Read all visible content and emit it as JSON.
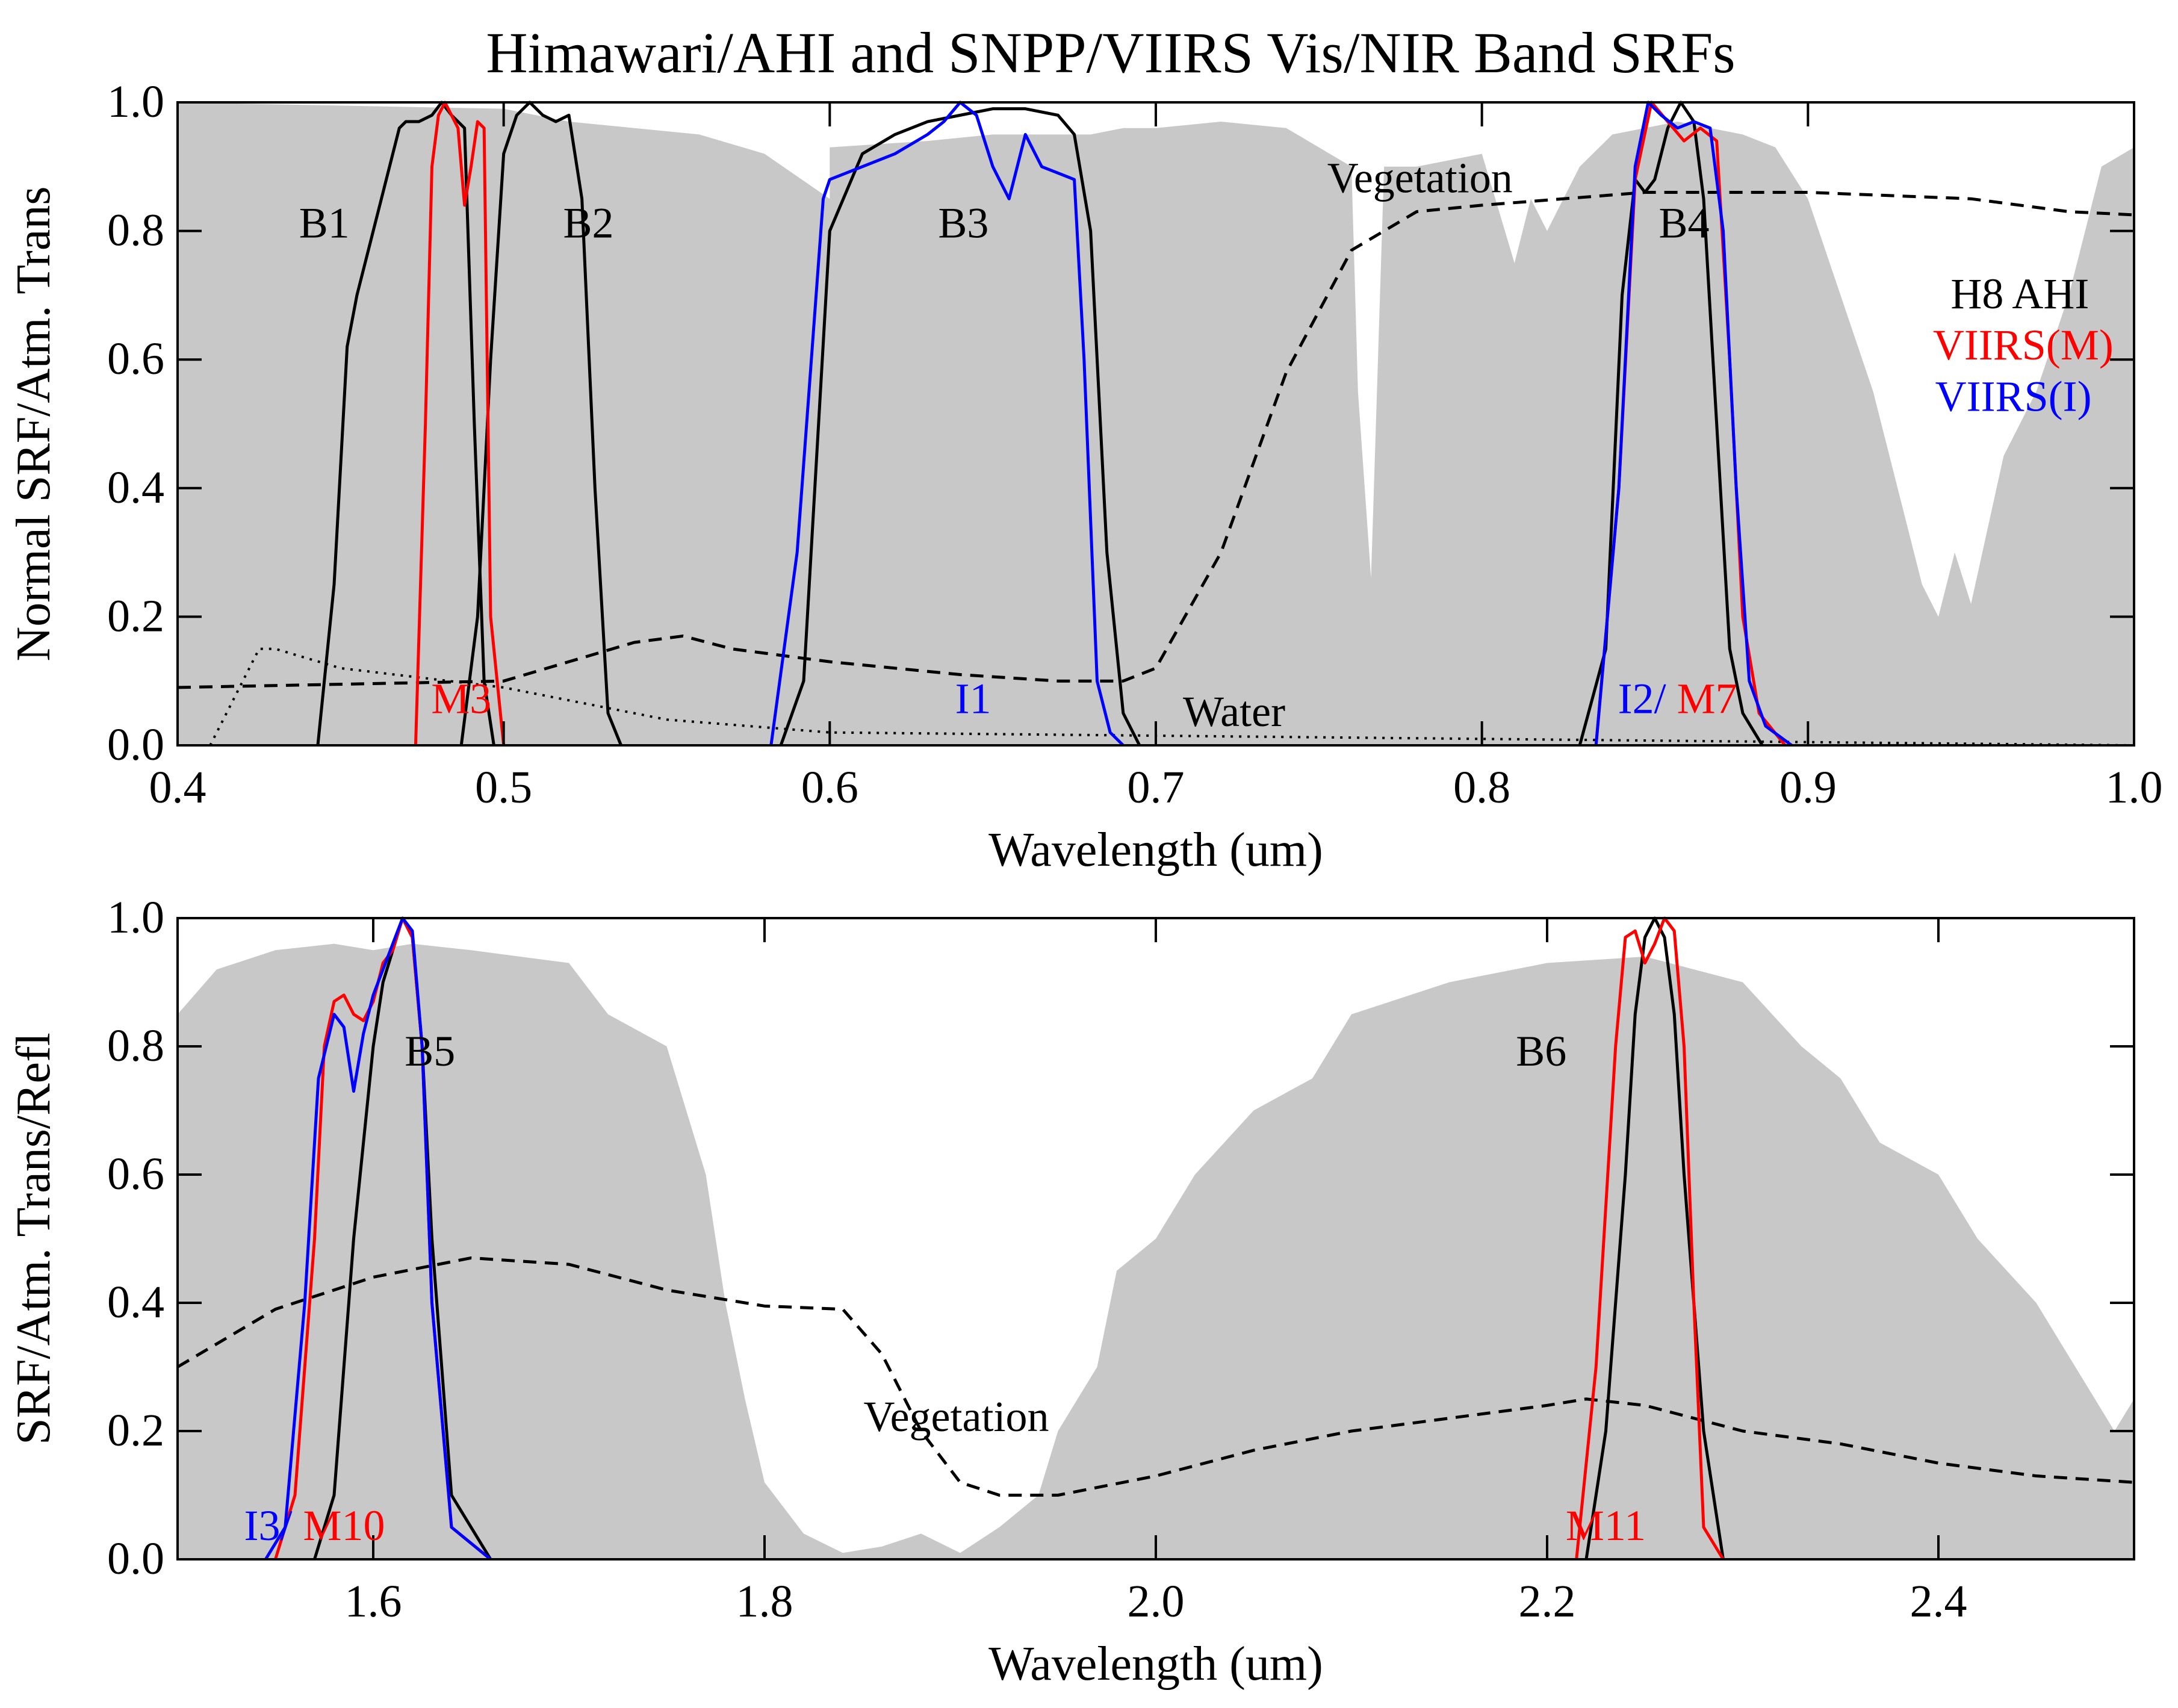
{
  "title": "Himawari/AHI and SNPP/VIIRS Vis/NIR Band SRFs",
  "colors": {
    "ahi": "#000000",
    "viirs_m": "#ff0000",
    "viirs_i": "#0000ff",
    "atm": "#c8c8c8",
    "axis": "#000000"
  },
  "chart_data": [
    {
      "type": "line",
      "id": "top",
      "xlabel": "Wavelength (um)",
      "ylabel": "Normal SRF/Atm. Trans",
      "xlim": [
        0.4,
        1.0
      ],
      "ylim": [
        0.0,
        1.0
      ],
      "xticks": [
        "0.4",
        "0.5",
        "0.6",
        "0.7",
        "0.8",
        "0.9",
        "1.0"
      ],
      "yticks": [
        "0.0",
        "0.2",
        "0.4",
        "0.6",
        "0.8",
        "1.0"
      ],
      "legend": {
        "placement": "right",
        "entries": [
          "H8 AHI",
          "VIIRS(M)",
          "VIIRS(I)"
        ]
      },
      "atmosphere": {
        "name": "Atm. Trans",
        "x": [
          0.4,
          0.5,
          0.52,
          0.56,
          0.58,
          0.6,
          0.6,
          0.63,
          0.65,
          0.68,
          0.69,
          0.7,
          0.72,
          0.74,
          0.76,
          0.762,
          0.766,
          0.77,
          0.78,
          0.8,
          0.81,
          0.815,
          0.82,
          0.83,
          0.84,
          0.86,
          0.88,
          0.89,
          0.9,
          0.91,
          0.92,
          0.93,
          0.935,
          0.94,
          0.945,
          0.95,
          0.96,
          0.97,
          0.98,
          0.99,
          1.0
        ],
        "y": [
          1.0,
          0.99,
          0.97,
          0.95,
          0.92,
          0.85,
          0.93,
          0.94,
          0.95,
          0.95,
          0.96,
          0.96,
          0.97,
          0.96,
          0.9,
          0.55,
          0.26,
          0.9,
          0.9,
          0.92,
          0.75,
          0.85,
          0.8,
          0.9,
          0.95,
          0.97,
          0.95,
          0.93,
          0.85,
          0.7,
          0.55,
          0.35,
          0.25,
          0.2,
          0.3,
          0.22,
          0.45,
          0.55,
          0.7,
          0.9,
          0.93
        ]
      },
      "series": [
        {
          "name": "Vegetation",
          "role": "ref",
          "style": "dashed",
          "x": [
            0.4,
            0.5,
            0.52,
            0.54,
            0.555,
            0.57,
            0.6,
            0.64,
            0.67,
            0.69,
            0.7,
            0.72,
            0.74,
            0.76,
            0.78,
            0.8,
            0.85,
            0.9,
            0.95,
            0.98,
            1.0
          ],
          "y": [
            0.09,
            0.1,
            0.13,
            0.16,
            0.17,
            0.15,
            0.13,
            0.11,
            0.1,
            0.1,
            0.12,
            0.3,
            0.58,
            0.77,
            0.83,
            0.84,
            0.86,
            0.86,
            0.85,
            0.83,
            0.825
          ]
        },
        {
          "name": "Water",
          "role": "ref",
          "style": "dotted",
          "x": [
            0.41,
            0.42,
            0.425,
            0.43,
            0.45,
            0.5,
            0.55,
            0.6,
            0.7,
            0.8,
            0.9,
            1.0
          ],
          "y": [
            0.0,
            0.1,
            0.15,
            0.15,
            0.12,
            0.09,
            0.04,
            0.02,
            0.015,
            0.01,
            0.005,
            0.0
          ]
        },
        {
          "name": "B1",
          "instrument": "H8 AHI",
          "x": [
            0.443,
            0.448,
            0.452,
            0.455,
            0.46,
            0.465,
            0.468,
            0.47,
            0.474,
            0.478,
            0.481,
            0.484,
            0.488,
            0.491,
            0.494,
            0.497
          ],
          "y": [
            0.0,
            0.25,
            0.62,
            0.7,
            0.8,
            0.9,
            0.96,
            0.97,
            0.97,
            0.98,
            1.0,
            0.98,
            0.96,
            0.5,
            0.1,
            0.0
          ]
        },
        {
          "name": "B2",
          "instrument": "H8 AHI",
          "x": [
            0.487,
            0.492,
            0.496,
            0.5,
            0.504,
            0.508,
            0.512,
            0.516,
            0.52,
            0.524,
            0.528,
            0.532,
            0.536
          ],
          "y": [
            0.0,
            0.2,
            0.6,
            0.92,
            0.98,
            1.0,
            0.98,
            0.97,
            0.98,
            0.85,
            0.4,
            0.05,
            0.0
          ]
        },
        {
          "name": "B3",
          "instrument": "H8 AHI",
          "x": [
            0.585,
            0.592,
            0.6,
            0.61,
            0.62,
            0.63,
            0.64,
            0.65,
            0.66,
            0.67,
            0.675,
            0.68,
            0.685,
            0.69,
            0.695
          ],
          "y": [
            0.0,
            0.1,
            0.8,
            0.92,
            0.95,
            0.97,
            0.98,
            0.99,
            0.99,
            0.98,
            0.95,
            0.8,
            0.3,
            0.05,
            0.0
          ]
        },
        {
          "name": "B4",
          "instrument": "H8 AHI",
          "x": [
            0.83,
            0.838,
            0.843,
            0.847,
            0.85,
            0.853,
            0.857,
            0.861,
            0.865,
            0.868,
            0.872,
            0.876,
            0.88,
            0.886
          ],
          "y": [
            0.0,
            0.15,
            0.7,
            0.88,
            0.86,
            0.88,
            0.96,
            1.0,
            0.97,
            0.85,
            0.5,
            0.15,
            0.05,
            0.0
          ]
        },
        {
          "name": "M3",
          "instrument": "VIIRS(M)",
          "x": [
            0.473,
            0.476,
            0.478,
            0.48,
            0.482,
            0.484,
            0.486,
            0.488,
            0.49,
            0.492,
            0.494,
            0.496,
            0.5
          ],
          "y": [
            0.0,
            0.5,
            0.9,
            0.98,
            1.0,
            0.98,
            0.96,
            0.84,
            0.9,
            0.97,
            0.96,
            0.2,
            0.0
          ]
        },
        {
          "name": "M7",
          "instrument": "VIIRS(M)",
          "x": [
            0.835,
            0.842,
            0.847,
            0.852,
            0.857,
            0.862,
            0.867,
            0.872,
            0.876,
            0.88,
            0.885,
            0.893
          ],
          "y": [
            0.0,
            0.4,
            0.88,
            1.0,
            0.97,
            0.94,
            0.96,
            0.94,
            0.6,
            0.2,
            0.05,
            0.0
          ]
        },
        {
          "name": "I1",
          "instrument": "VIIRS(I)",
          "x": [
            0.582,
            0.59,
            0.598,
            0.6,
            0.61,
            0.62,
            0.63,
            0.635,
            0.64,
            0.645,
            0.65,
            0.655,
            0.66,
            0.665,
            0.67,
            0.675,
            0.678,
            0.682,
            0.686,
            0.69
          ],
          "y": [
            0.0,
            0.3,
            0.85,
            0.88,
            0.9,
            0.92,
            0.95,
            0.97,
            1.0,
            0.98,
            0.9,
            0.85,
            0.95,
            0.9,
            0.89,
            0.88,
            0.6,
            0.1,
            0.02,
            0.0
          ]
        },
        {
          "name": "I2",
          "instrument": "VIIRS(I)",
          "x": [
            0.835,
            0.842,
            0.847,
            0.851,
            0.855,
            0.86,
            0.865,
            0.87,
            0.874,
            0.878,
            0.882,
            0.887,
            0.895
          ],
          "y": [
            0.0,
            0.4,
            0.9,
            1.0,
            0.98,
            0.96,
            0.97,
            0.96,
            0.8,
            0.4,
            0.1,
            0.03,
            0.0
          ]
        }
      ],
      "labels": [
        {
          "text": "B1",
          "x": 0.445,
          "y": 0.79,
          "color": "ahi"
        },
        {
          "text": "B2",
          "x": 0.526,
          "y": 0.79,
          "color": "ahi"
        },
        {
          "text": "B3",
          "x": 0.641,
          "y": 0.79,
          "color": "ahi"
        },
        {
          "text": "B4",
          "x": 0.862,
          "y": 0.79,
          "color": "ahi"
        },
        {
          "text": "Vegetation",
          "x": 0.781,
          "y": 0.86,
          "color": "ahi"
        },
        {
          "text": "Water",
          "x": 0.724,
          "y": 0.03,
          "color": "ahi"
        },
        {
          "text": "M3",
          "x": 0.487,
          "y": 0.05,
          "color": "viirs_m"
        },
        {
          "text": "I1",
          "x": 0.644,
          "y": 0.05,
          "color": "viirs_i"
        },
        {
          "text": "H8 AHI",
          "x": 0.965,
          "y": 0.68,
          "color": "ahi"
        },
        {
          "text": "VIIRS(M)",
          "x": 0.966,
          "y": 0.6,
          "color": "viirs_m"
        },
        {
          "text": "VIIRS(I)",
          "x": 0.963,
          "y": 0.52,
          "color": "viirs_i"
        }
      ],
      "mixed_labels": [
        {
          "x": 0.86,
          "y": 0.05,
          "parts": [
            {
              "text": "I2/ ",
              "color": "viirs_i"
            },
            {
              "text": "M7",
              "color": "viirs_m"
            }
          ]
        }
      ]
    },
    {
      "type": "line",
      "id": "bottom",
      "xlabel": "Wavelength (um)",
      "ylabel": "SRF/Atm. Trans/Refl",
      "xlim": [
        1.5,
        2.5
      ],
      "ylim": [
        0.0,
        1.0
      ],
      "xticks": [
        "1.6",
        "1.8",
        "2.0",
        "2.2",
        "2.4"
      ],
      "yticks": [
        "0.0",
        "0.2",
        "0.4",
        "0.6",
        "0.8",
        "1.0"
      ],
      "atmosphere": {
        "name": "Atm. Trans",
        "x": [
          1.5,
          1.52,
          1.55,
          1.58,
          1.6,
          1.62,
          1.65,
          1.7,
          1.72,
          1.75,
          1.77,
          1.78,
          1.79,
          1.8,
          1.81,
          1.82,
          1.84,
          1.86,
          1.88,
          1.9,
          1.92,
          1.94,
          1.95,
          1.97,
          1.98,
          2.0,
          2.02,
          2.05,
          2.08,
          2.1,
          2.15,
          2.2,
          2.25,
          2.3,
          2.33,
          2.35,
          2.37,
          2.4,
          2.42,
          2.45,
          2.47,
          2.49,
          2.5
        ],
        "y": [
          0.85,
          0.92,
          0.95,
          0.96,
          0.95,
          0.96,
          0.95,
          0.93,
          0.85,
          0.8,
          0.6,
          0.4,
          0.25,
          0.12,
          0.08,
          0.04,
          0.01,
          0.02,
          0.04,
          0.01,
          0.05,
          0.1,
          0.2,
          0.3,
          0.45,
          0.5,
          0.6,
          0.7,
          0.75,
          0.85,
          0.9,
          0.93,
          0.94,
          0.9,
          0.8,
          0.75,
          0.65,
          0.6,
          0.5,
          0.4,
          0.3,
          0.2,
          0.25
        ]
      },
      "series": [
        {
          "name": "Vegetation",
          "role": "ref",
          "style": "dashed",
          "x": [
            1.5,
            1.55,
            1.6,
            1.65,
            1.7,
            1.75,
            1.8,
            1.84,
            1.86,
            1.88,
            1.9,
            1.92,
            1.95,
            2.0,
            2.05,
            2.1,
            2.15,
            2.2,
            2.22,
            2.25,
            2.3,
            2.35,
            2.4,
            2.45,
            2.5
          ],
          "y": [
            0.3,
            0.39,
            0.44,
            0.47,
            0.46,
            0.42,
            0.395,
            0.39,
            0.32,
            0.2,
            0.12,
            0.1,
            0.1,
            0.13,
            0.17,
            0.2,
            0.22,
            0.24,
            0.25,
            0.24,
            0.2,
            0.18,
            0.15,
            0.13,
            0.12
          ]
        },
        {
          "name": "B5",
          "instrument": "H8 AHI",
          "x": [
            1.57,
            1.58,
            1.59,
            1.6,
            1.605,
            1.61,
            1.615,
            1.62,
            1.625,
            1.63,
            1.64,
            1.66
          ],
          "y": [
            0.0,
            0.1,
            0.5,
            0.8,
            0.9,
            0.95,
            1.0,
            0.97,
            0.8,
            0.5,
            0.1,
            0.0
          ]
        },
        {
          "name": "B6",
          "instrument": "H8 AHI",
          "x": [
            2.22,
            2.23,
            2.24,
            2.245,
            2.25,
            2.255,
            2.26,
            2.265,
            2.27,
            2.28,
            2.29
          ],
          "y": [
            0.0,
            0.2,
            0.6,
            0.85,
            0.97,
            1.0,
            0.97,
            0.85,
            0.6,
            0.2,
            0.0
          ]
        },
        {
          "name": "M10",
          "instrument": "VIIRS(M)",
          "x": [
            1.55,
            1.56,
            1.57,
            1.575,
            1.58,
            1.585,
            1.59,
            1.595,
            1.6,
            1.605,
            1.61,
            1.615,
            1.62,
            1.625,
            1.63,
            1.64,
            1.66
          ],
          "y": [
            0.0,
            0.1,
            0.5,
            0.8,
            0.87,
            0.88,
            0.85,
            0.84,
            0.87,
            0.93,
            0.95,
            1.0,
            0.97,
            0.8,
            0.4,
            0.05,
            0.0
          ]
        },
        {
          "name": "M11",
          "instrument": "VIIRS(M)",
          "x": [
            2.215,
            2.225,
            2.235,
            2.24,
            2.245,
            2.25,
            2.255,
            2.26,
            2.265,
            2.27,
            2.275,
            2.28,
            2.29
          ],
          "y": [
            0.0,
            0.3,
            0.8,
            0.97,
            0.98,
            0.93,
            0.96,
            1.0,
            0.98,
            0.8,
            0.4,
            0.05,
            0.0
          ]
        },
        {
          "name": "I3",
          "instrument": "VIIRS(I)",
          "x": [
            1.545,
            1.555,
            1.565,
            1.572,
            1.58,
            1.585,
            1.59,
            1.595,
            1.6,
            1.605,
            1.61,
            1.615,
            1.62,
            1.625,
            1.63,
            1.64,
            1.66
          ],
          "y": [
            0.0,
            0.05,
            0.4,
            0.75,
            0.85,
            0.83,
            0.73,
            0.82,
            0.88,
            0.92,
            0.96,
            1.0,
            0.98,
            0.8,
            0.4,
            0.05,
            0.0
          ]
        }
      ],
      "labels": [
        {
          "text": "B5",
          "x": 1.629,
          "y": 0.77,
          "color": "ahi"
        },
        {
          "text": "B6",
          "x": 2.197,
          "y": 0.77,
          "color": "ahi"
        },
        {
          "text": "Vegetation",
          "x": 1.898,
          "y": 0.2,
          "color": "ahi"
        },
        {
          "text": "M11",
          "x": 2.23,
          "y": 0.03,
          "color": "viirs_m"
        }
      ],
      "mixed_labels": [
        {
          "x": 1.57,
          "y": 0.03,
          "parts": [
            {
              "text": "I3/ ",
              "color": "viirs_i"
            },
            {
              "text": "M10",
              "color": "viirs_m"
            }
          ]
        }
      ]
    }
  ]
}
